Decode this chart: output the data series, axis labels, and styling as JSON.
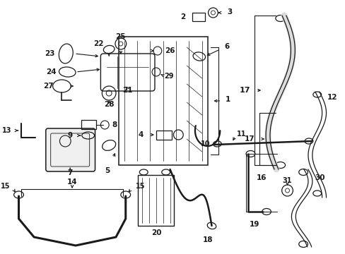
{
  "bg_color": "#ffffff",
  "fig_width": 4.89,
  "fig_height": 3.6,
  "dpi": 100,
  "ec": "#1a1a1a",
  "lw_hose": 2.2,
  "lw_line": 0.9,
  "fs": 7.5
}
